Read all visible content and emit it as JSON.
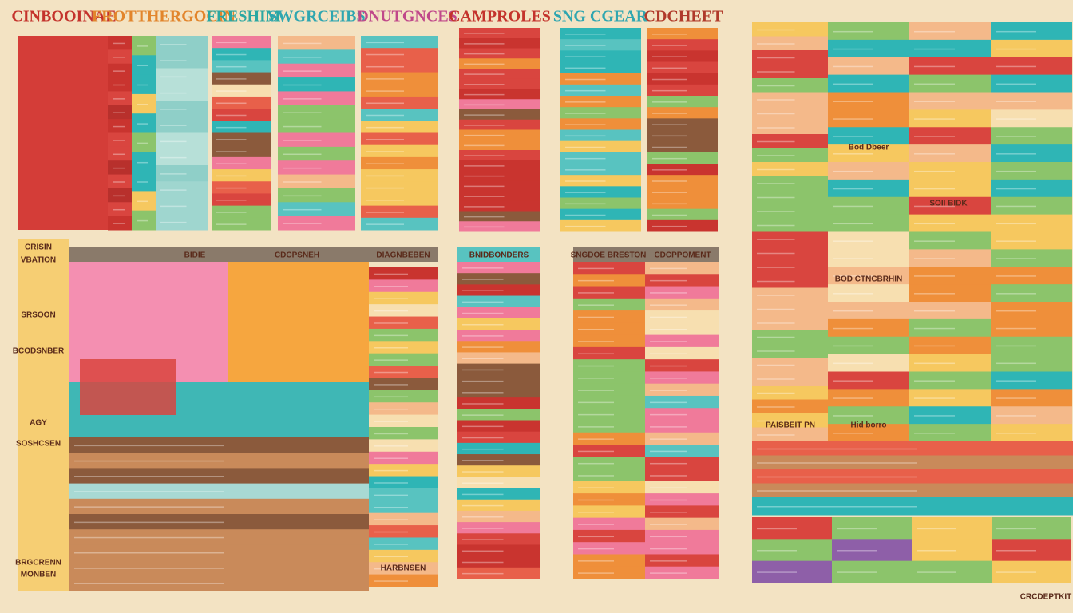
{
  "headers": [
    "CINBOOINAE",
    "FROTTHERGOCIN",
    "FRESHIM",
    "SWGRCEIBS",
    "DNUTGNCES",
    "CAMPROLES",
    "SNG CGEAR",
    "CDCHEET"
  ],
  "lower_left": {
    "side_title": "CRISIN",
    "side_subtitle": "VBATION",
    "column_heads": [
      "BIDIE",
      "CDCPSNEH",
      "DIAGNBEBEN"
    ],
    "side_labels": [
      "SRSOON",
      "BCODSNBER",
      "AGY",
      "SOSHCSEN",
      "BRGCRENN",
      "MONBEN"
    ],
    "footer_label": "HARBNSEN"
  },
  "middle": {
    "left_head": "BNIDBONDERS",
    "right_heads": [
      "SNGDOE BRESTON",
      "CDCPPOMENT"
    ]
  },
  "right": {
    "row_labels": [
      "SOII BIDK",
      "Hid borro",
      "PAISBEIT PN",
      "BOD CTNCBRHIN",
      "Bod Dbeer"
    ],
    "corner_label": "CRCDEPTKIT"
  }
}
